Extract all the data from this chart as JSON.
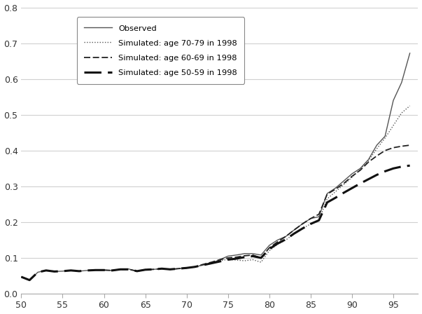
{
  "title": "",
  "xlabel": "",
  "ylabel": "",
  "xlim": [
    50,
    98
  ],
  "ylim": [
    0.0,
    0.8
  ],
  "xticks": [
    50,
    55,
    60,
    65,
    70,
    75,
    80,
    85,
    90,
    95
  ],
  "yticks": [
    0.0,
    0.1,
    0.2,
    0.3,
    0.4,
    0.5,
    0.6,
    0.7,
    0.8
  ],
  "background_color": "#ffffff",
  "grid_color": "#d0d0d0",
  "line_color": "#000000",
  "legend_entries": [
    "Observed",
    "Simulated: age 70-79 in 1998",
    "Simulated: age 60-69 in 1998",
    "Simulated: age 50-59 in 1998"
  ],
  "observed": {
    "x": [
      50,
      51,
      52,
      53,
      54,
      55,
      56,
      57,
      58,
      59,
      60,
      61,
      62,
      63,
      64,
      65,
      66,
      67,
      68,
      69,
      70,
      71,
      72,
      73,
      74,
      75,
      76,
      77,
      78,
      79,
      80,
      81,
      82,
      83,
      84,
      85,
      86,
      87,
      88,
      89,
      90,
      91,
      92,
      93,
      94,
      95,
      96,
      97
    ],
    "y": [
      0.047,
      0.038,
      0.06,
      0.065,
      0.062,
      0.063,
      0.065,
      0.063,
      0.065,
      0.066,
      0.066,
      0.065,
      0.068,
      0.069,
      0.063,
      0.067,
      0.068,
      0.07,
      0.068,
      0.07,
      0.072,
      0.075,
      0.08,
      0.085,
      0.095,
      0.105,
      0.108,
      0.112,
      0.112,
      0.108,
      0.135,
      0.15,
      0.16,
      0.178,
      0.195,
      0.21,
      0.215,
      0.28,
      0.295,
      0.315,
      0.335,
      0.35,
      0.375,
      0.415,
      0.44,
      0.54,
      0.59,
      0.672
    ]
  },
  "sim_7079": {
    "x": [
      70,
      71,
      72,
      73,
      74,
      75,
      76,
      77,
      78,
      79,
      80,
      81,
      82,
      83,
      84,
      85,
      86,
      87,
      88,
      89,
      90,
      91,
      92,
      93,
      94,
      95,
      96,
      97
    ],
    "y": [
      0.072,
      0.075,
      0.08,
      0.085,
      0.092,
      0.096,
      0.094,
      0.092,
      0.095,
      0.088,
      0.12,
      0.138,
      0.15,
      0.168,
      0.182,
      0.195,
      0.205,
      0.265,
      0.285,
      0.305,
      0.325,
      0.348,
      0.372,
      0.405,
      0.435,
      0.47,
      0.505,
      0.525
    ]
  },
  "sim_6069": {
    "x": [
      60,
      61,
      62,
      63,
      64,
      65,
      66,
      67,
      68,
      69,
      70,
      71,
      72,
      73,
      74,
      75,
      76,
      77,
      78,
      79,
      80,
      81,
      82,
      83,
      84,
      85,
      86,
      87,
      88,
      89,
      90,
      91,
      92,
      93,
      94,
      95,
      96,
      97
    ],
    "y": [
      0.066,
      0.065,
      0.068,
      0.068,
      0.063,
      0.067,
      0.068,
      0.07,
      0.068,
      0.07,
      0.072,
      0.075,
      0.082,
      0.088,
      0.095,
      0.1,
      0.102,
      0.106,
      0.108,
      0.1,
      0.128,
      0.145,
      0.16,
      0.178,
      0.195,
      0.21,
      0.222,
      0.278,
      0.292,
      0.308,
      0.328,
      0.345,
      0.368,
      0.385,
      0.4,
      0.408,
      0.412,
      0.415
    ]
  },
  "sim_5059": {
    "x": [
      50,
      51,
      52,
      53,
      54,
      55,
      56,
      57,
      58,
      59,
      60,
      61,
      62,
      63,
      64,
      65,
      66,
      67,
      68,
      69,
      70,
      71,
      72,
      73,
      74,
      75,
      76,
      77,
      78,
      79,
      80,
      81,
      82,
      83,
      84,
      85,
      86,
      87,
      88,
      89,
      90,
      91,
      92,
      93,
      94,
      95,
      96,
      97
    ],
    "y": [
      0.047,
      0.038,
      0.06,
      0.065,
      0.062,
      0.063,
      0.065,
      0.063,
      0.065,
      0.066,
      0.066,
      0.065,
      0.068,
      0.068,
      0.063,
      0.067,
      0.068,
      0.07,
      0.068,
      0.07,
      0.072,
      0.075,
      0.08,
      0.085,
      0.09,
      0.095,
      0.098,
      0.102,
      0.105,
      0.1,
      0.125,
      0.14,
      0.152,
      0.168,
      0.182,
      0.195,
      0.205,
      0.255,
      0.268,
      0.282,
      0.295,
      0.308,
      0.32,
      0.332,
      0.342,
      0.35,
      0.355,
      0.358
    ]
  }
}
